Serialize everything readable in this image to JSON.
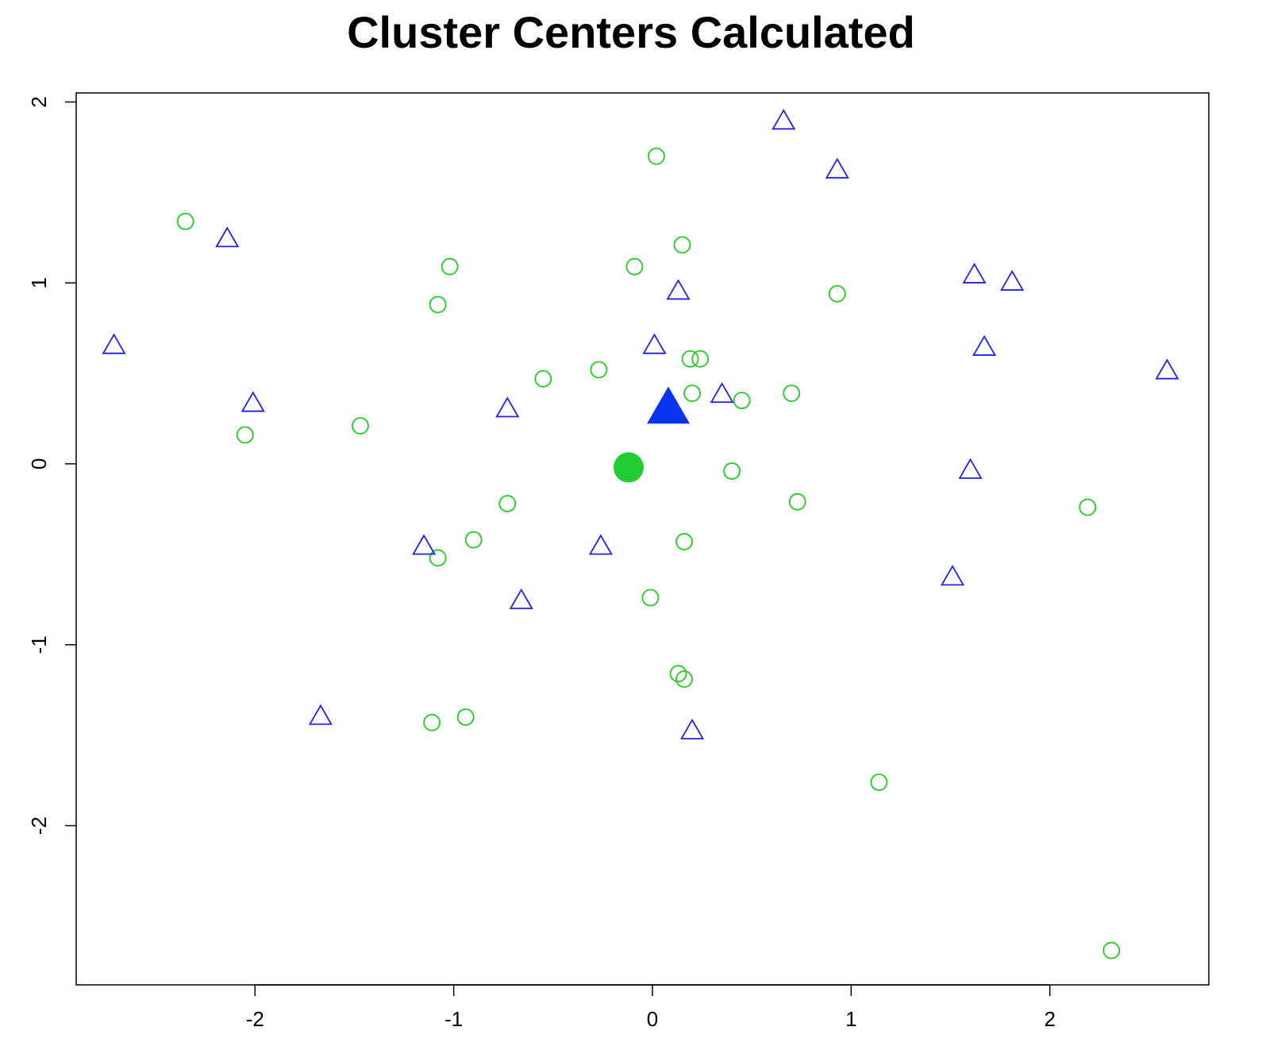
{
  "chart_data": {
    "type": "scatter",
    "title": "Cluster Centers Calculated",
    "xlabel": "",
    "ylabel": "",
    "xlim": [
      -2.9,
      2.8
    ],
    "ylim": [
      -2.88,
      2.05
    ],
    "xticks": [
      -2,
      -1,
      0,
      1,
      2
    ],
    "yticks": [
      -2,
      -1,
      0,
      1,
      2
    ],
    "xtick_labels": [
      "-2",
      "-1",
      "0",
      "1",
      "2"
    ],
    "ytick_labels": [
      "-2",
      "-1",
      "0",
      "1",
      "2"
    ],
    "grid": false,
    "legend": "none",
    "series": [
      {
        "marker": "open-circle",
        "color": "#22cc22",
        "points": [
          [
            0.02,
            1.7
          ],
          [
            -2.35,
            1.34
          ],
          [
            0.15,
            1.21
          ],
          [
            -1.02,
            1.09
          ],
          [
            -0.09,
            1.09
          ],
          [
            -1.08,
            0.88
          ],
          [
            0.93,
            0.94
          ],
          [
            0.19,
            0.58
          ],
          [
            0.24,
            0.58
          ],
          [
            -0.27,
            0.52
          ],
          [
            -0.55,
            0.47
          ],
          [
            0.2,
            0.39
          ],
          [
            0.45,
            0.35
          ],
          [
            0.7,
            0.39
          ],
          [
            -1.47,
            0.21
          ],
          [
            -2.05,
            0.16
          ],
          [
            0.4,
            -0.04
          ],
          [
            -0.73,
            -0.22
          ],
          [
            0.73,
            -0.21
          ],
          [
            2.19,
            -0.24
          ],
          [
            -0.9,
            -0.42
          ],
          [
            0.16,
            -0.43
          ],
          [
            -1.08,
            -0.52
          ],
          [
            -0.01,
            -0.74
          ],
          [
            0.13,
            -1.16
          ],
          [
            0.16,
            -1.19
          ],
          [
            -0.94,
            -1.4
          ],
          [
            -1.11,
            -1.43
          ],
          [
            1.14,
            -1.76
          ],
          [
            2.31,
            -2.69
          ]
        ]
      },
      {
        "marker": "open-triangle",
        "color": "#2222ee",
        "points": [
          [
            0.66,
            1.89
          ],
          [
            0.93,
            1.62
          ],
          [
            -2.14,
            1.24
          ],
          [
            1.62,
            1.04
          ],
          [
            1.81,
            1.0
          ],
          [
            0.13,
            0.95
          ],
          [
            -2.71,
            0.65
          ],
          [
            0.01,
            0.65
          ],
          [
            1.67,
            0.64
          ],
          [
            2.59,
            0.51
          ],
          [
            -2.01,
            0.33
          ],
          [
            0.35,
            0.38
          ],
          [
            -0.73,
            0.3
          ],
          [
            1.6,
            -0.04
          ],
          [
            -1.15,
            -0.46
          ],
          [
            -0.26,
            -0.46
          ],
          [
            1.51,
            -0.63
          ],
          [
            -0.66,
            -0.76
          ],
          [
            -1.67,
            -1.4
          ],
          [
            0.2,
            -1.48
          ]
        ]
      }
    ],
    "centers": [
      {
        "marker": "filled-circle",
        "color": "#22cc33",
        "x": -0.12,
        "y": -0.02
      },
      {
        "marker": "filled-triangle",
        "color": "#0a33ee",
        "x": 0.08,
        "y": 0.3
      }
    ]
  }
}
